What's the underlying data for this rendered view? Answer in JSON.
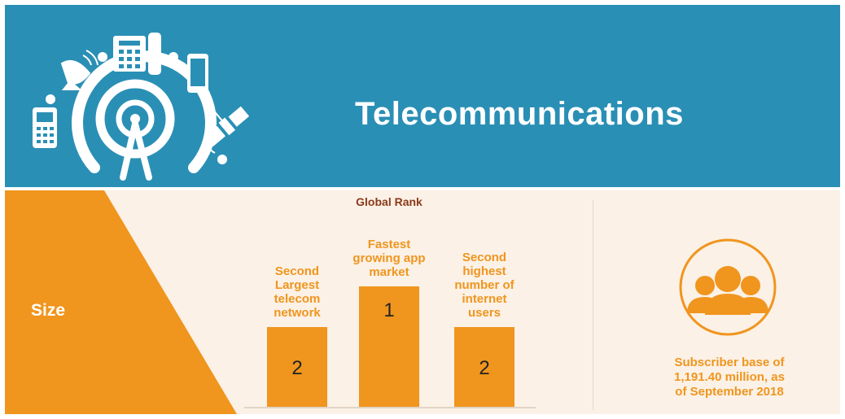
{
  "banner": {
    "title": "Telecommunications",
    "icons": [
      "satellite-dish-icon",
      "desk-phone-icon",
      "smartphone-icon",
      "mobile-phone-icon",
      "satellite-icon",
      "signal-tower-icon"
    ]
  },
  "colors": {
    "banner_blue": "#2a8fb5",
    "accent_orange": "#f0951e",
    "panel_cream": "#fbf1e6",
    "rank_title": "#8b3a1a"
  },
  "size_label": "Size",
  "chart_data": {
    "type": "bar",
    "title": "Global Rank",
    "categories": [
      "Second Largest telecom network",
      "Fastest growing app market",
      "Second highest number of internet users"
    ],
    "category_lines": [
      [
        "Second",
        "Largest",
        "telecom",
        "network"
      ],
      [
        "Fastest",
        "growing app",
        "market"
      ],
      [
        "Second",
        "highest",
        "number of",
        "internet",
        "users"
      ]
    ],
    "values": [
      2,
      1,
      2
    ],
    "value_labels": [
      "2",
      "1",
      "2"
    ],
    "note": "Rank 1 drawn as the tallest bar"
  },
  "subscriber": {
    "icon": "people-group-icon",
    "lines": [
      "Subscriber base of",
      "1,191.40 million, as",
      "of September 2018"
    ]
  }
}
